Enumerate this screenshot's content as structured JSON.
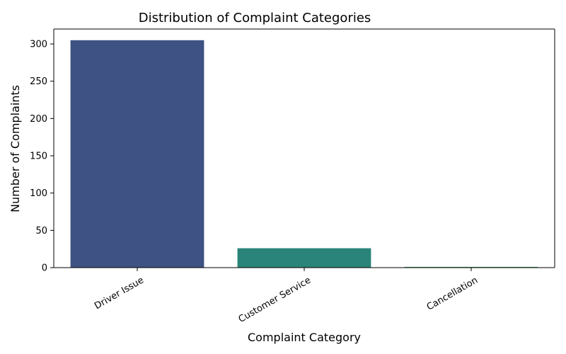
{
  "chart_data": {
    "type": "bar",
    "title": "Distribution of Complaint Categories",
    "xlabel": "Complaint Category",
    "ylabel": "Number of Complaints",
    "categories": [
      "Driver Issue",
      "Customer Service",
      "Cancellation"
    ],
    "values": [
      305,
      26,
      1
    ],
    "colors": [
      "#3e5283",
      "#2a8479",
      "#3aa25a"
    ],
    "ylim": [
      0,
      320
    ],
    "yticks": [
      0,
      50,
      100,
      150,
      200,
      250,
      300
    ],
    "grid": false,
    "legend": "none"
  }
}
